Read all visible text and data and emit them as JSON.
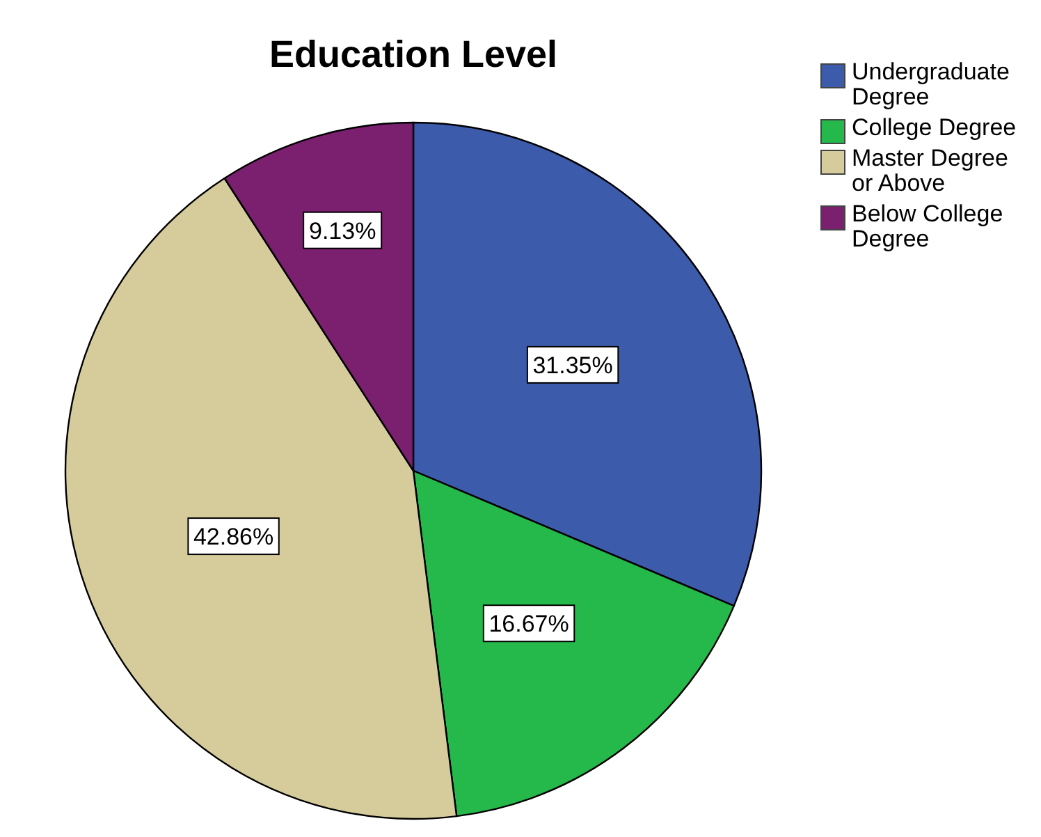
{
  "chart_data": {
    "type": "pie",
    "title": "Education Level",
    "categories": [
      "Undergraduate Degree",
      "College Degree",
      "Master Degree or Above",
      "Below College Degree"
    ],
    "values": [
      31.35,
      16.67,
      42.86,
      9.13
    ],
    "colors": [
      "#3d5bab",
      "#25b84a",
      "#d6cc9b",
      "#7b1f6f"
    ],
    "value_labels": [
      "31.35%",
      "16.67%",
      "42.86%",
      "9.13%"
    ],
    "legend": "top right"
  }
}
